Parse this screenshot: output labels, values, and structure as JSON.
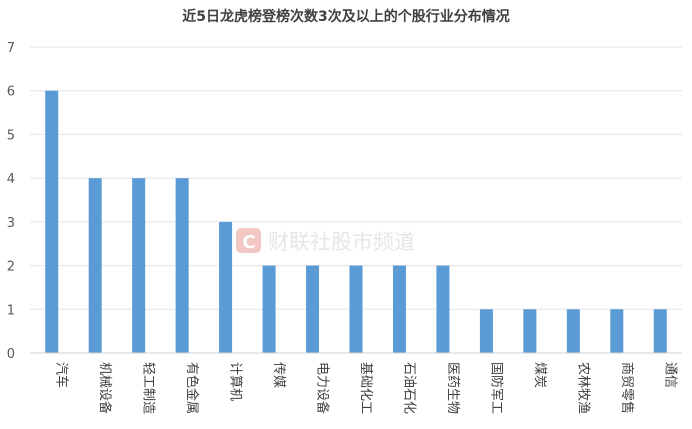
{
  "watermark": {
    "text": "财联社股市频道",
    "icon": "cls-logo-icon",
    "color": "#f3c7c3"
  },
  "chart_data": {
    "type": "bar",
    "title": "近5日龙虎榜登榜次数3次及以上的个股行业分布情况",
    "xlabel": "",
    "ylabel": "",
    "ylim": [
      0,
      7
    ],
    "yticks": [
      0,
      1,
      2,
      3,
      4,
      5,
      6,
      7
    ],
    "grid": true,
    "legend": "none",
    "bar_color": "#5b9bd5",
    "categories": [
      "汽车",
      "机械设备",
      "轻工制造",
      "有色金属",
      "计算机",
      "传媒",
      "电力设备",
      "基础化工",
      "石油石化",
      "医药生物",
      "国防军工",
      "煤炭",
      "农林牧渔",
      "商贸零售",
      "通信"
    ],
    "values": [
      6,
      4,
      4,
      4,
      3,
      2,
      2,
      2,
      2,
      2,
      1,
      1,
      1,
      1,
      1
    ]
  }
}
